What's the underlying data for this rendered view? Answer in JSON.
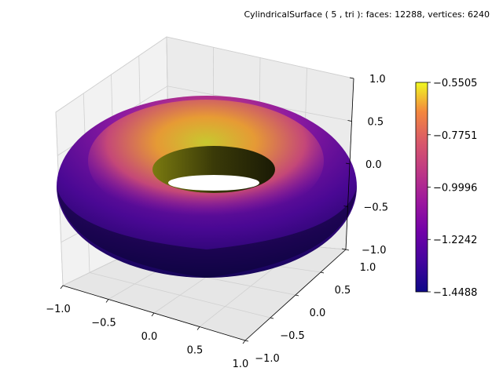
{
  "chart_data": {
    "type": "surface3d",
    "title": "CylindricalSurface ( 5 , tri ):  faces: 12288,  vertices: 6240",
    "surface": "torus",
    "faces": 12288,
    "vertices": 6240,
    "colormap": "plasma",
    "x_ticks": [
      "−1.0",
      "−0.5",
      "0.0",
      "0.5",
      "1.0"
    ],
    "y_ticks": [
      "−1.0",
      "−0.5",
      "0.0",
      "0.5",
      "1.0"
    ],
    "z_ticks": [
      "−1.0",
      "−0.5",
      "0.0",
      "0.5",
      "1.0"
    ],
    "xlim": [
      -1.0,
      1.0
    ],
    "ylim": [
      -1.0,
      1.0
    ],
    "zlim": [
      -1.0,
      1.0
    ],
    "colorbar": {
      "ticks": [
        "−0.5505",
        "−0.7751",
        "−0.9996",
        "−1.2242",
        "−1.4488"
      ],
      "tick_values": [
        -0.5505,
        -0.7751,
        -0.9996,
        -1.2242,
        -1.4488
      ],
      "min": -1.4488,
      "max": -0.5505
    },
    "grid": true
  }
}
